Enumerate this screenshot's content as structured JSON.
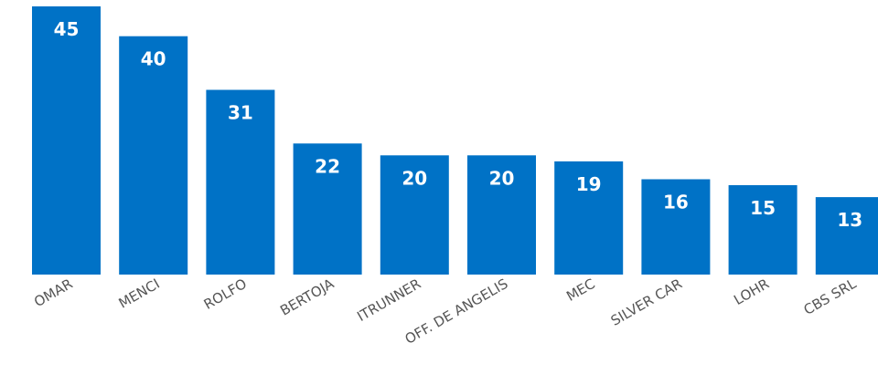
{
  "chart_data": {
    "type": "bar",
    "categories": [
      "OMAR",
      "MENCI",
      "ROLFO",
      "BERTOJA",
      "ITRUNNER",
      "OFF. DE ANGELIS",
      "MEC",
      "SILVER CAR",
      "LOHR",
      "CBS SRL"
    ],
    "values": [
      45,
      40,
      31,
      22,
      20,
      20,
      19,
      16,
      15,
      13
    ],
    "title": "",
    "xlabel": "",
    "ylabel": "",
    "ylim": [
      0,
      45
    ],
    "grid": false,
    "legend": "none",
    "data_labels": true,
    "bar_color": "#0072C6",
    "label_color": "#FFFFFF",
    "category_label_color": "#555555"
  }
}
